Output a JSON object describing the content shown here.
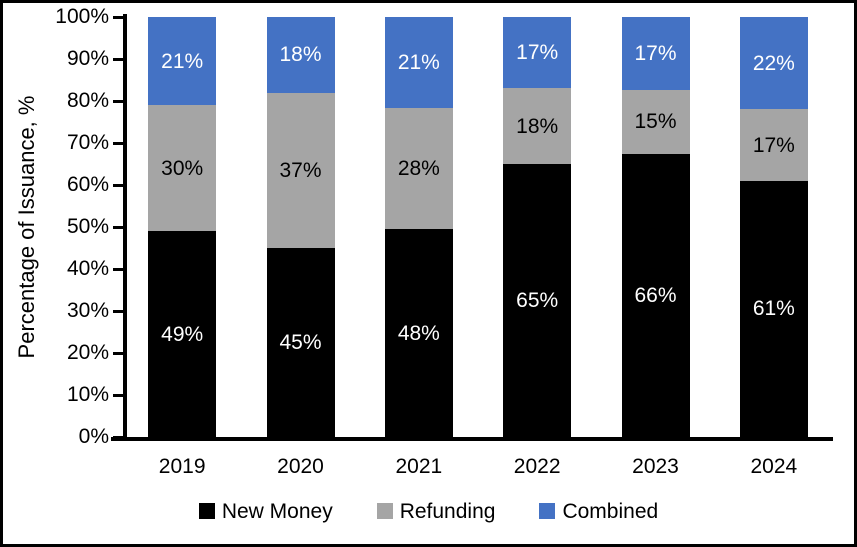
{
  "chart_data": {
    "type": "bar",
    "variant": "stacked-100-percent-column",
    "title": "",
    "xlabel": "",
    "ylabel": "Percentage of Issuance, %",
    "categories": [
      "2019",
      "2020",
      "2021",
      "2022",
      "2023",
      "2024"
    ],
    "series": [
      {
        "name": "New Money",
        "color": "#000000",
        "label_color": "#FFFFFF",
        "values": [
          49,
          45,
          48,
          65,
          66,
          61
        ],
        "labels": [
          "49%",
          "45%",
          "48%",
          "65%",
          "66%",
          "61%"
        ]
      },
      {
        "name": "Refunding",
        "color": "#A5A5A5",
        "label_color": "#000000",
        "values": [
          30,
          37,
          28,
          18,
          15,
          17
        ],
        "labels": [
          "30%",
          "37%",
          "28%",
          "18%",
          "15%",
          "17%"
        ]
      },
      {
        "name": "Combined",
        "color": "#4472C4",
        "label_color": "#FFFFFF",
        "values": [
          21,
          18,
          21,
          17,
          17,
          22
        ],
        "labels": [
          "21%",
          "18%",
          "21%",
          "17%",
          "17%",
          "22%"
        ]
      }
    ],
    "y_ticks": [
      "0%",
      "10%",
      "20%",
      "30%",
      "40%",
      "50%",
      "60%",
      "70%",
      "80%",
      "90%",
      "100%"
    ],
    "ylim": [
      0,
      100
    ],
    "grid": false,
    "legend_position": "bottom",
    "axis_color": "#000000",
    "background_color": "#FFFFFF"
  }
}
